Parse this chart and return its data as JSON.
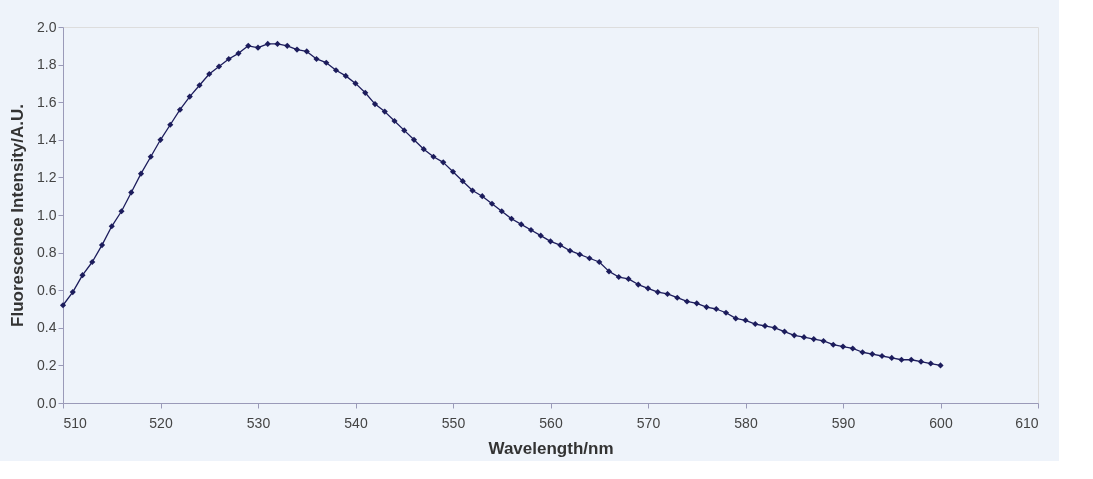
{
  "chart_data": {
    "type": "line",
    "xlabel": "Wavelength/nm",
    "ylabel": "Fluorescence Intensity/A.U.",
    "x": [
      510,
      511,
      512,
      513,
      514,
      515,
      516,
      517,
      518,
      519,
      520,
      521,
      522,
      523,
      524,
      525,
      526,
      527,
      528,
      529,
      530,
      531,
      532,
      533,
      534,
      535,
      536,
      537,
      538,
      539,
      540,
      541,
      542,
      543,
      544,
      545,
      546,
      547,
      548,
      549,
      550,
      551,
      552,
      553,
      554,
      555,
      556,
      557,
      558,
      559,
      560,
      561,
      562,
      563,
      564,
      565,
      566,
      567,
      568,
      569,
      570,
      571,
      572,
      573,
      574,
      575,
      576,
      577,
      578,
      579,
      580,
      581,
      582,
      583,
      584,
      585,
      586,
      587,
      588,
      589,
      590,
      591,
      592,
      593,
      594,
      595,
      596,
      597,
      598,
      599,
      600
    ],
    "series": [
      {
        "color": "#1c1c5c",
        "values": [
          0.52,
          0.59,
          0.68,
          0.75,
          0.84,
          0.94,
          1.02,
          1.12,
          1.22,
          1.31,
          1.4,
          1.48,
          1.56,
          1.63,
          1.69,
          1.75,
          1.79,
          1.83,
          1.86,
          1.9,
          1.89,
          1.91,
          1.91,
          1.9,
          1.88,
          1.87,
          1.83,
          1.81,
          1.77,
          1.74,
          1.7,
          1.65,
          1.59,
          1.55,
          1.5,
          1.45,
          1.4,
          1.35,
          1.31,
          1.28,
          1.23,
          1.18,
          1.13,
          1.1,
          1.06,
          1.02,
          0.98,
          0.95,
          0.92,
          0.89,
          0.86,
          0.84,
          0.81,
          0.79,
          0.77,
          0.75,
          0.7,
          0.67,
          0.66,
          0.63,
          0.61,
          0.59,
          0.58,
          0.56,
          0.54,
          0.53,
          0.51,
          0.5,
          0.48,
          0.45,
          0.44,
          0.42,
          0.41,
          0.4,
          0.38,
          0.36,
          0.35,
          0.34,
          0.33,
          0.31,
          0.3,
          0.29,
          0.27,
          0.26,
          0.25,
          0.24,
          0.23,
          0.23,
          0.22,
          0.21,
          0.2
        ]
      }
    ],
    "xlim": [
      510,
      610
    ],
    "xticks": [
      510,
      520,
      530,
      540,
      550,
      560,
      570,
      580,
      590,
      600,
      610
    ],
    "ylim": [
      0,
      2
    ],
    "yticks": [
      {
        "value": 0,
        "label": "0.0"
      },
      {
        "value": 0.2,
        "label": "0.2"
      },
      {
        "value": 0.4,
        "label": "0.4"
      },
      {
        "value": 0.6,
        "label": "0.6"
      },
      {
        "value": 0.8,
        "label": "0.8"
      },
      {
        "value": 1,
        "label": "1.0"
      },
      {
        "value": 1.2,
        "label": "1.2"
      },
      {
        "value": 1.4,
        "label": "1.4"
      },
      {
        "value": 1.6,
        "label": "1.6"
      },
      {
        "value": 1.8,
        "label": "1.8"
      },
      {
        "value": 2,
        "label": "2.0"
      }
    ],
    "grid": false,
    "marker": "diamond",
    "line_style": "solid"
  }
}
